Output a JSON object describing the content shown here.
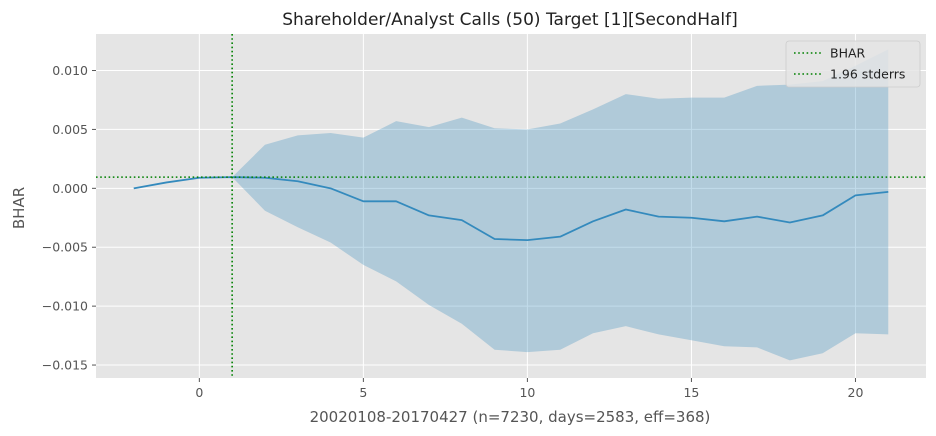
{
  "chart_data": {
    "type": "line",
    "title": "Shareholder/Analyst Calls (50) Target [1][SecondHalf]",
    "xlabel": "20020108-20170427 (n=7230, days=2583, eff=368)",
    "ylabel": "BHAR",
    "xlim": [
      -3.15,
      22.15
    ],
    "ylim": [
      -0.0161,
      0.0131
    ],
    "x_ticks": [
      0,
      5,
      10,
      15,
      20
    ],
    "x_tick_labels": [
      "0",
      "5",
      "10",
      "15",
      "20"
    ],
    "y_ticks": [
      -0.015,
      -0.01,
      -0.005,
      0.0,
      0.005,
      0.01
    ],
    "y_tick_labels": [
      "−0.015",
      "−0.010",
      "−0.005",
      "0.000",
      "0.005",
      "0.010"
    ],
    "grid": true,
    "legend_position": "top-right",
    "legend": [
      {
        "label": "BHAR",
        "color": "#008000",
        "style": "dotted"
      },
      {
        "label": "1.96 stderrs",
        "color": "#008000",
        "style": "dotted"
      }
    ],
    "series": [
      {
        "x": [
          -2,
          -1,
          0,
          1,
          2,
          3,
          4,
          5,
          6,
          7,
          8,
          9,
          10,
          11,
          12,
          13,
          14,
          15,
          16,
          17,
          18,
          19,
          20,
          21
        ],
        "values": [
          0.0,
          0.0005,
          0.0009,
          0.00095,
          0.0009,
          0.0006,
          0.0,
          -0.0011,
          -0.0011,
          -0.0023,
          -0.0027,
          -0.0043,
          -0.0044,
          -0.0041,
          -0.0028,
          -0.0018,
          -0.0024,
          -0.0025,
          -0.0028,
          -0.0024,
          -0.0029,
          -0.0023,
          -0.0006,
          -0.0003
        ],
        "color": "#348abd"
      }
    ],
    "confidence_band": {
      "x": [
        1,
        2,
        3,
        4,
        5,
        6,
        7,
        8,
        9,
        10,
        11,
        12,
        13,
        14,
        15,
        16,
        17,
        18,
        19,
        20,
        21
      ],
      "upper": [
        0.00095,
        0.0037,
        0.0045,
        0.0047,
        0.0043,
        0.0057,
        0.0052,
        0.006,
        0.0051,
        0.005,
        0.0055,
        0.0067,
        0.008,
        0.0076,
        0.0077,
        0.0077,
        0.0087,
        0.0088,
        0.0091,
        0.0104,
        0.0118
      ],
      "lower": [
        0.00095,
        -0.0019,
        -0.0033,
        -0.0046,
        -0.0065,
        -0.0079,
        -0.0099,
        -0.0115,
        -0.0137,
        -0.0139,
        -0.0137,
        -0.0123,
        -0.0117,
        -0.0124,
        -0.0129,
        -0.0134,
        -0.0135,
        -0.0146,
        -0.014,
        -0.0123,
        -0.0124
      ],
      "color": "#348abd"
    },
    "reference_lines": {
      "vertical_x": 1,
      "horizontal_y": 0.00095,
      "color": "#008000"
    }
  }
}
